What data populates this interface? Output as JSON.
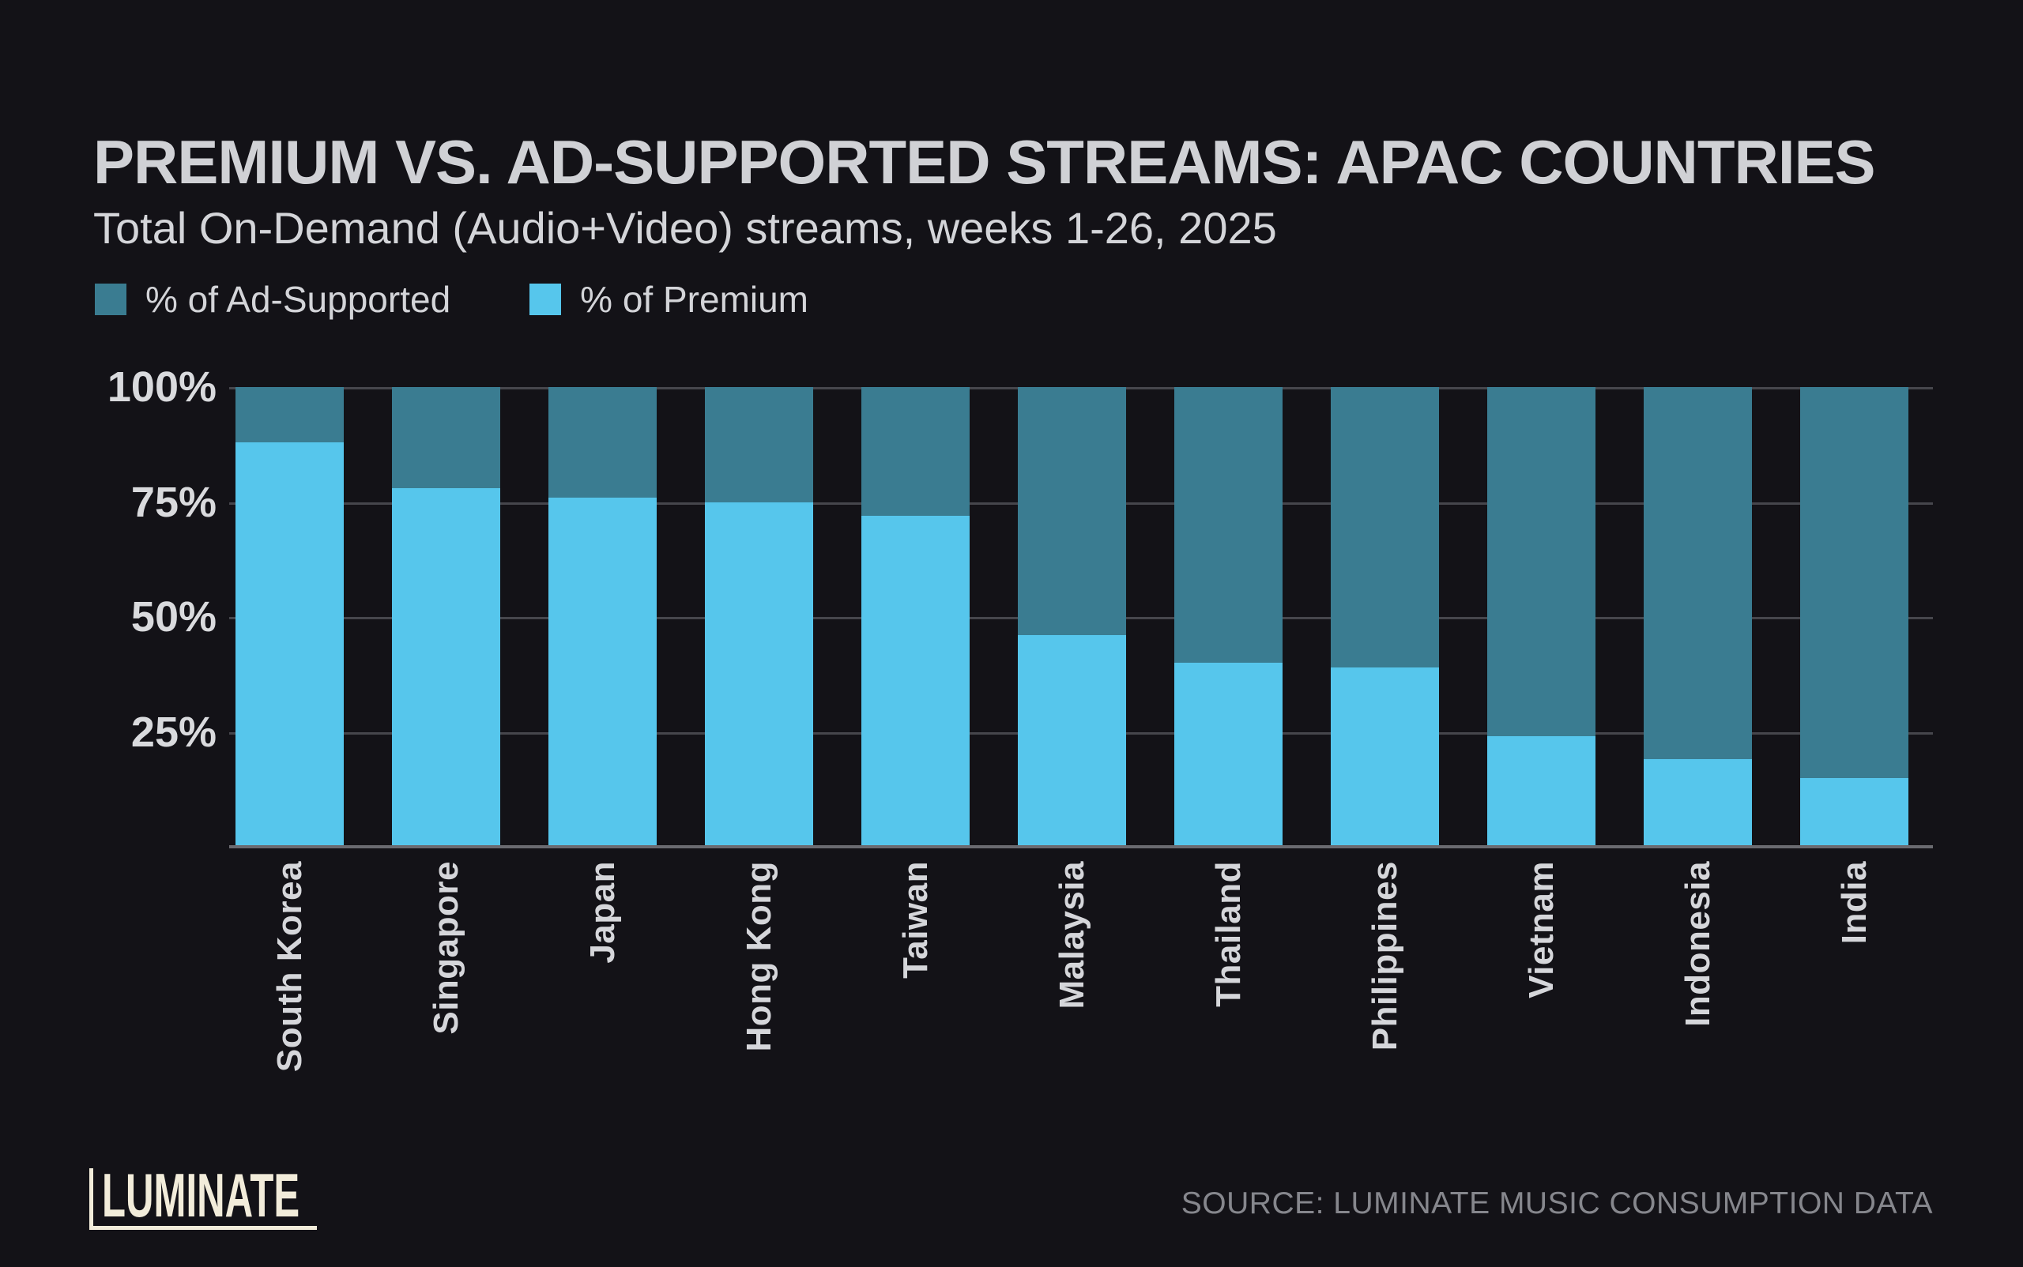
{
  "header": {
    "title": "PREMIUM VS. AD-SUPPORTED STREAMS: APAC COUNTRIES",
    "subtitle": "Total On-Demand (Audio+Video) streams, weeks 1-26, 2025"
  },
  "legend": [
    {
      "label": "% of Ad-Supported",
      "color": "#3A7C91"
    },
    {
      "label": "% of Premium",
      "color": "#56C6EC"
    }
  ],
  "chart_data": {
    "type": "bar",
    "stacked": true,
    "orientation": "vertical",
    "categories": [
      "South Korea",
      "Singapore",
      "Japan",
      "Hong Kong",
      "Taiwan",
      "Malaysia",
      "Thailand",
      "Philippines",
      "Vietnam",
      "Indonesia",
      "India"
    ],
    "series": [
      {
        "name": "% of Premium",
        "color": "#56C6EC",
        "values": [
          88,
          78,
          76,
          75,
          72,
          46,
          40,
          39,
          24,
          19,
          15
        ]
      },
      {
        "name": "% of Ad-Supported",
        "color": "#3A7C91",
        "values": [
          12,
          22,
          24,
          25,
          28,
          54,
          60,
          61,
          76,
          81,
          85
        ]
      }
    ],
    "title": "PREMIUM VS. AD-SUPPORTED STREAMS: APAC COUNTRIES",
    "subtitle": "Total On-Demand (Audio+Video) streams, weeks 1-26, 2025",
    "xlabel": "",
    "ylabel": "",
    "ylim": [
      0,
      100
    ],
    "y_ticks": [
      "100%",
      "75%",
      "50%",
      "25%"
    ],
    "y_tick_values": [
      100,
      75,
      50,
      25
    ],
    "grid": true,
    "legend_position": "top-left",
    "x_label_rotation": 90
  },
  "footer": {
    "logo_text": "LUMINATE",
    "source": "SOURCE: LUMINATE MUSIC CONSUMPTION DATA"
  },
  "colors": {
    "background": "#131217",
    "premium": "#56C6EC",
    "ad_supported": "#3A7C91",
    "gridline": "#46464C",
    "axis_line": "#6A6A70",
    "text_primary": "#D0D1D5",
    "text_secondary": "#86878D",
    "logo_cream": "#F2ECDA"
  }
}
